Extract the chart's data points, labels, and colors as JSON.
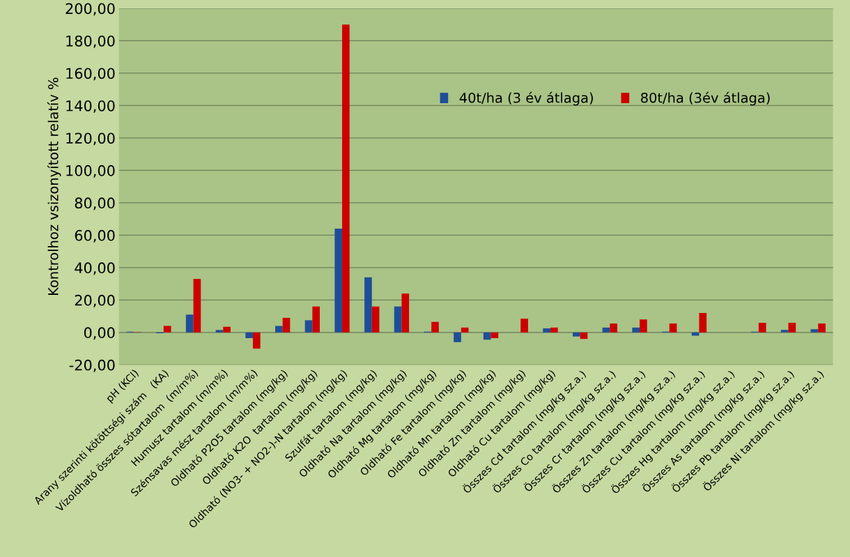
{
  "chart_data": {
    "type": "bar",
    "ylabel": "Kontrolhoz vsizonyított relatív %",
    "categories": [
      "pH (KCl)",
      "Arany szerinti kötöttségi szám   (KA)",
      "Vízoldható összes sótartalom  (m/m%)",
      "Humusz tartalom (m/m%)",
      "Szénsavas mész tartalom (m/m%)",
      "Oldható P2O5 tartalom (mg/kg)",
      "Oldható K2O  tartalom (mg/kg)",
      "Oldható (NO3- + NO2-)-N tartalom (mg/kg)",
      "Szulfát tartalom (mg/kg)",
      "Oldható Na tartalom (mg/kg)",
      "Oldható Mg tartalom (mg/kg)",
      "Oldható Fe tartalom (mg/kg)",
      "Oldható Mn tartalom (mg/kg)",
      "Oldható Zn tartalom (mg/kg)",
      "Oldható Cu tartalom (mg/kg)",
      "Összes Cd tartalom (mg/kg sz.a.)",
      "Összes Co tartalom (mg/kg sz.a.)",
      "Összes Cr tartalom (mg/kg sz.a.)",
      "Összes Zn tartalom (mg/kg sz.a.)",
      "Összes Cu tartalom (mg/kg sz.a.)",
      "Összes Hg tartalom (mg/kg sz.a.)",
      "Összes As tartalom (mg/kg sz.a.)",
      "Összes Pb tartalom (mg/kg sz.a.)",
      "Összes Ni tartalom (mg/kg sz.a.)"
    ],
    "series": [
      {
        "name": "40t/ha (3 év átlaga)",
        "color": "#1f4e96",
        "values": [
          0.5,
          -0.5,
          11,
          1.5,
          -3.5,
          4,
          7.5,
          64,
          34,
          16,
          0.5,
          -6,
          -4.5,
          0,
          2.5,
          -2.5,
          3,
          3,
          0.5,
          -2,
          0,
          0.5,
          1.5,
          2
        ]
      },
      {
        "name": "80t/ha (3év átlaga)",
        "color": "#cc0000",
        "values": [
          0.3,
          4,
          33,
          3.5,
          -10,
          9,
          16,
          190,
          16,
          24,
          6.5,
          3,
          -3.5,
          8.5,
          3,
          -4,
          5.5,
          8,
          5.5,
          12,
          0,
          6,
          6,
          5.5
        ]
      }
    ],
    "ylim": [
      -20,
      200
    ],
    "yticks": [
      {
        "value": -20,
        "label": "-20,00"
      },
      {
        "value": 0,
        "label": "0,00"
      },
      {
        "value": 20,
        "label": "20,00"
      },
      {
        "value": 40,
        "label": "40,00"
      },
      {
        "value": 60,
        "label": "60,00"
      },
      {
        "value": 80,
        "label": "80,00"
      },
      {
        "value": 100,
        "label": "100,00"
      },
      {
        "value": 120,
        "label": "120,00"
      },
      {
        "value": 140,
        "label": "140,00"
      },
      {
        "value": 160,
        "label": "160,00"
      },
      {
        "value": 180,
        "label": "180,00"
      },
      {
        "value": 200,
        "label": "200,00"
      }
    ],
    "grid": "y",
    "legend": "top right"
  }
}
